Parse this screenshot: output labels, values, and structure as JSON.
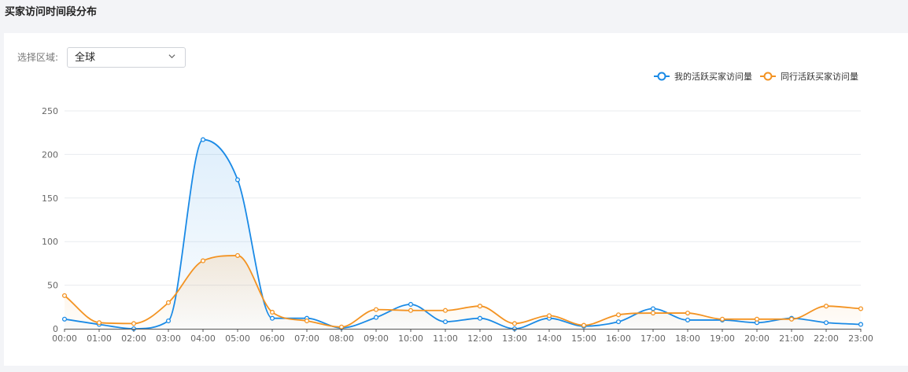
{
  "page": {
    "title": "买家访问时间段分布"
  },
  "filter": {
    "region_label": "选择区域:",
    "region_value": "全球"
  },
  "colors": {
    "mine": "#1a8ae6",
    "peer": "#f39322",
    "grid": "#e9ebef",
    "axis_text": "#666666"
  },
  "chart_data": {
    "type": "line",
    "smooth": true,
    "area_fill": true,
    "categories": [
      "00:00",
      "01:00",
      "02:00",
      "03:00",
      "04:00",
      "05:00",
      "06:00",
      "07:00",
      "08:00",
      "09:00",
      "10:00",
      "11:00",
      "12:00",
      "13:00",
      "14:00",
      "15:00",
      "16:00",
      "17:00",
      "18:00",
      "19:00",
      "20:00",
      "21:00",
      "22:00",
      "23:00"
    ],
    "series": [
      {
        "name": "我的活跃买家访问量",
        "color": "#1a8ae6",
        "values": [
          11,
          5,
          0,
          9,
          217,
          171,
          12,
          12,
          1,
          13,
          28,
          8,
          12,
          0,
          12,
          3,
          8,
          23,
          10,
          10,
          7,
          12,
          7,
          5
        ]
      },
      {
        "name": "同行活跃买家访问量",
        "color": "#f39322",
        "values": [
          38,
          7,
          6,
          30,
          78,
          84,
          19,
          9,
          2,
          22,
          21,
          21,
          26,
          6,
          15,
          4,
          16,
          18,
          18,
          11,
          11,
          11,
          26,
          23
        ]
      }
    ],
    "ylim": [
      0,
      250
    ],
    "yticks": [
      0,
      50,
      100,
      150,
      200,
      250
    ],
    "grid": true,
    "legend_position": "top-right",
    "xlabel": "",
    "ylabel": ""
  }
}
